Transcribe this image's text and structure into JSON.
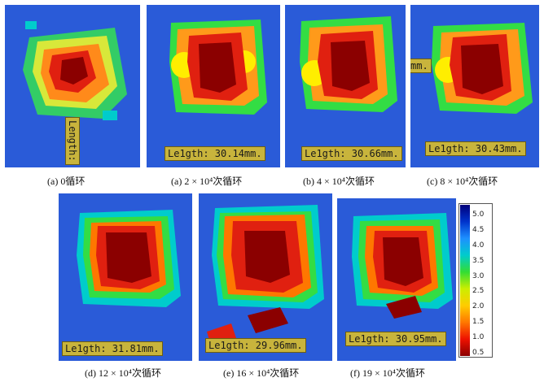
{
  "figure": {
    "panels": [
      {
        "id": "a0",
        "caption": "(a) 0循环",
        "length_label": "Length:",
        "length_vertical": true
      },
      {
        "id": "a2",
        "caption": "(a)  2 × 10⁴次循环",
        "length_label": "Le1gth: 30.14mm."
      },
      {
        "id": "b4",
        "caption": "(b) 4 × 10⁴次循环",
        "length_label": "Le1gth: 30.66mm."
      },
      {
        "id": "c8",
        "caption": "(c) 8 × 10⁴次循环",
        "length_label": "Le1gth: 30.43mm."
      },
      {
        "id": "d12",
        "caption": "(d) 12 × 10⁴次循环",
        "length_label": "Le1gth: 31.81mm."
      },
      {
        "id": "e16",
        "caption": "(e) 16 × 10⁴次循环",
        "length_label": "Le1gth: 29.96mm."
      },
      {
        "id": "f19",
        "caption": "(f) 19 × 10⁴次循环",
        "length_label": "Le1gth: 30.95mm."
      }
    ],
    "extra_labels": {
      "c8_clip": "mm."
    },
    "colorbar": {
      "ticks": [
        "5.0",
        "4.5",
        "4.0",
        "3.5",
        "3.0",
        "2.5",
        "2.0",
        "1.5",
        "1.0",
        "0.5"
      ],
      "colors": [
        "#00007a",
        "#0033cc",
        "#1e90ff",
        "#00cccc",
        "#33dd33",
        "#ccee00",
        "#ffcc00",
        "#ff7700",
        "#ee1100",
        "#8b0000"
      ]
    }
  }
}
